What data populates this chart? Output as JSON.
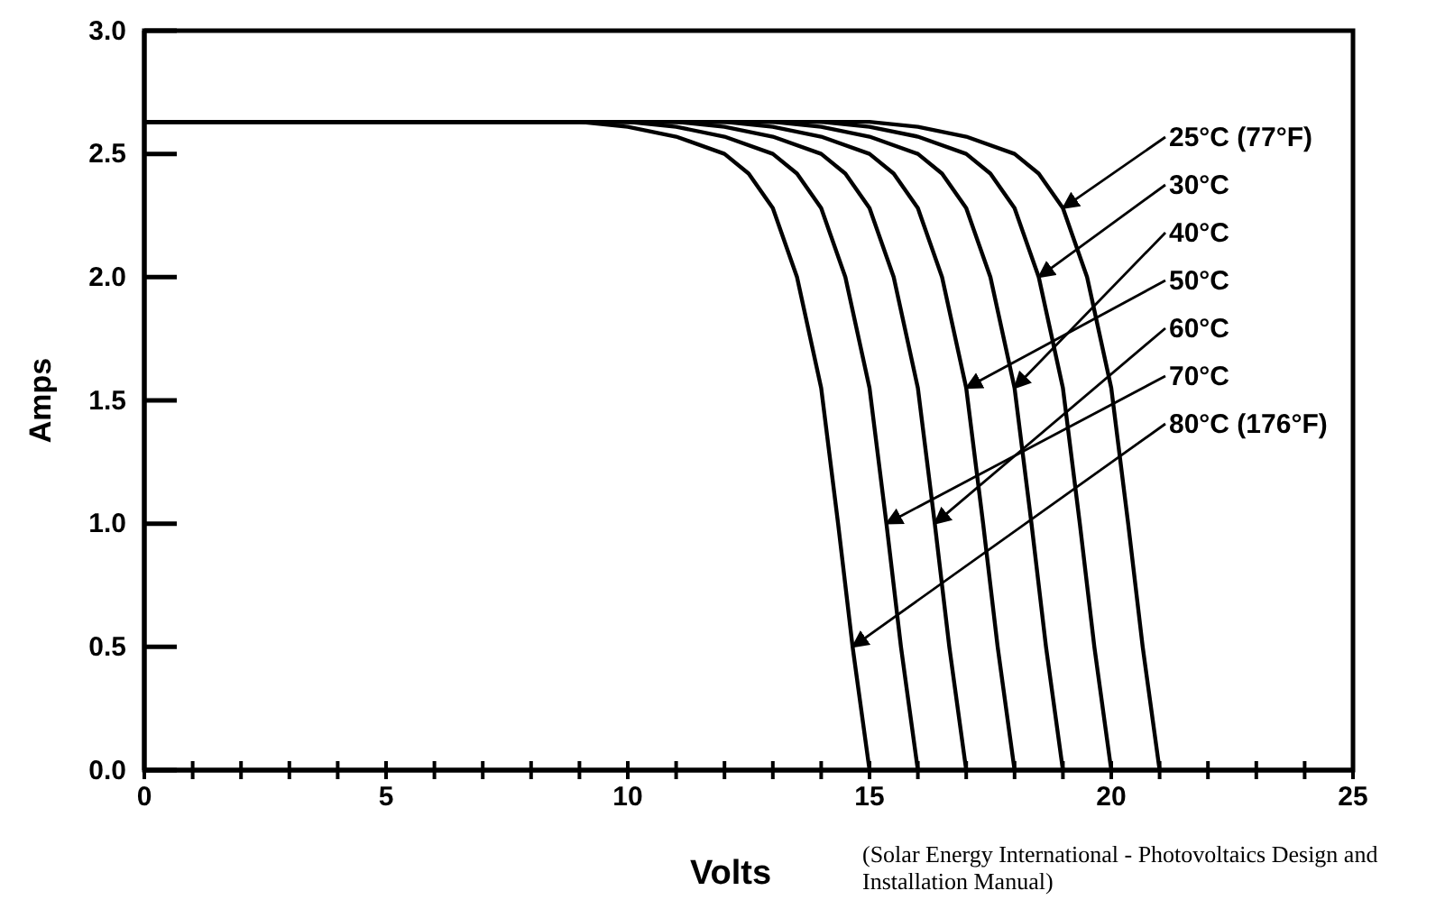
{
  "chart_data": {
    "type": "line",
    "xlabel": "Volts",
    "ylabel": "Amps",
    "xlim": [
      0,
      25
    ],
    "ylim": [
      0,
      3
    ],
    "xticks": [
      0,
      {
        "value": 1,
        "label": null
      },
      {
        "value": 2,
        "label": null
      },
      {
        "value": 3,
        "label": null
      },
      {
        "value": 4,
        "label": null
      },
      5,
      {
        "value": 6,
        "label": null
      },
      {
        "value": 7,
        "label": null
      },
      {
        "value": 8,
        "label": null
      },
      {
        "value": 9,
        "label": null
      },
      10,
      {
        "value": 11,
        "label": null
      },
      {
        "value": 12,
        "label": null
      },
      {
        "value": 13,
        "label": null
      },
      {
        "value": 14,
        "label": null
      },
      15,
      {
        "value": 16,
        "label": null
      },
      {
        "value": 17,
        "label": null
      },
      {
        "value": 18,
        "label": null
      },
      {
        "value": 19,
        "label": null
      },
      20,
      {
        "value": 21,
        "label": null
      },
      {
        "value": 22,
        "label": null
      },
      {
        "value": 23,
        "label": null
      },
      {
        "value": 24,
        "label": null
      },
      25
    ],
    "yticks": [
      {
        "value": 0,
        "label": "0.0"
      },
      {
        "value": 0.5,
        "label": "0.5"
      },
      {
        "value": 1,
        "label": "1.0"
      },
      {
        "value": 1.5,
        "label": "1.5"
      },
      {
        "value": 2,
        "label": "2.0"
      },
      {
        "value": 2.5,
        "label": "2.5"
      },
      {
        "value": 3,
        "label": "3.0"
      }
    ],
    "grid": false,
    "marker": "none",
    "line_style": "solid",
    "series": [
      {
        "color": "#000000",
        "x": [
          0,
          15,
          16,
          17,
          18,
          18.5,
          19,
          19.5,
          20,
          20.35,
          20.65,
          21
        ],
        "values": [
          2.63,
          2.63,
          2.61,
          2.57,
          2.5,
          2.42,
          2.28,
          2.0,
          1.55,
          1.0,
          0.5,
          0
        ]
      },
      {
        "color": "#000000",
        "x": [
          0,
          14,
          15,
          16,
          17,
          17.5,
          18,
          18.5,
          19,
          19.35,
          19.65,
          20
        ],
        "values": [
          2.63,
          2.63,
          2.61,
          2.57,
          2.5,
          2.42,
          2.28,
          2.0,
          1.55,
          1.0,
          0.5,
          0
        ]
      },
      {
        "color": "#000000",
        "x": [
          0,
          13,
          14,
          15,
          16,
          16.5,
          17,
          17.5,
          18,
          18.35,
          18.65,
          19
        ],
        "values": [
          2.63,
          2.63,
          2.61,
          2.57,
          2.5,
          2.42,
          2.28,
          2.0,
          1.55,
          1.0,
          0.5,
          0
        ]
      },
      {
        "color": "#000000",
        "x": [
          0,
          12,
          13,
          14,
          15,
          15.5,
          16,
          16.5,
          17,
          17.35,
          17.65,
          18
        ],
        "values": [
          2.63,
          2.63,
          2.61,
          2.57,
          2.5,
          2.42,
          2.28,
          2.0,
          1.55,
          1.0,
          0.5,
          0
        ]
      },
      {
        "color": "#000000",
        "x": [
          0,
          11,
          12,
          13,
          14,
          14.5,
          15,
          15.5,
          16,
          16.35,
          16.65,
          17
        ],
        "values": [
          2.63,
          2.63,
          2.61,
          2.57,
          2.5,
          2.42,
          2.28,
          2.0,
          1.55,
          1.0,
          0.5,
          0
        ]
      },
      {
        "color": "#000000",
        "x": [
          0,
          10,
          11,
          12,
          13,
          13.5,
          14,
          14.5,
          15,
          15.35,
          15.65,
          16
        ],
        "values": [
          2.63,
          2.63,
          2.61,
          2.57,
          2.5,
          2.42,
          2.28,
          2.0,
          1.55,
          1.0,
          0.5,
          0
        ]
      },
      {
        "color": "#000000",
        "x": [
          0,
          9,
          10,
          11,
          12,
          12.5,
          13,
          13.5,
          14,
          14.35,
          14.65,
          15
        ],
        "values": [
          2.63,
          2.63,
          2.61,
          2.57,
          2.5,
          2.42,
          2.28,
          2.0,
          1.55,
          1.0,
          0.5,
          0
        ]
      }
    ],
    "annotations": [
      {
        "text": "25°C (77°F)",
        "x": 19,
        "y": 2.28
      },
      {
        "text": "30°C",
        "x": 18.5,
        "y": 2.0
      },
      {
        "text": "40°C",
        "x": 18,
        "y": 1.55
      },
      {
        "text": "50°C",
        "x": 17,
        "y": 1.55
      },
      {
        "text": "60°C",
        "x": 16.35,
        "y": 1.0
      },
      {
        "text": "70°C",
        "x": 15.35,
        "y": 1.0
      },
      {
        "text": "80°C (176°F)",
        "x": 14.65,
        "y": 0.5
      },
      "(Solar Energy International - Photovoltaics Design and Installation Manual)"
    ]
  }
}
